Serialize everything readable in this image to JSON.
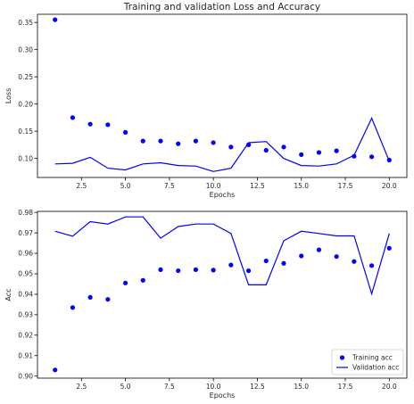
{
  "figure": {
    "title": "Training and validation Loss and Accuracy"
  },
  "chart_data": [
    {
      "type": "line",
      "xlabel": "Epochs",
      "ylabel": "Loss",
      "xlim": [
        0,
        21
      ],
      "ylim": [
        0.065,
        0.365
      ],
      "xticks": [
        2.5,
        5.0,
        7.5,
        10.0,
        12.5,
        15.0,
        17.5,
        20.0
      ],
      "xtick_labels": [
        "2.5",
        "5.0",
        "7.5",
        "10.0",
        "12.5",
        "15.0",
        "17.5",
        "20.0"
      ],
      "yticks": [
        0.1,
        0.15,
        0.2,
        0.25,
        0.3,
        0.35
      ],
      "ytick_labels": [
        "0.10",
        "0.15",
        "0.20",
        "0.25",
        "0.30",
        "0.35"
      ],
      "grid": false,
      "x": [
        1,
        2,
        3,
        4,
        5,
        6,
        7,
        8,
        9,
        10,
        11,
        12,
        13,
        14,
        15,
        16,
        17,
        18,
        19,
        20
      ],
      "series": [
        {
          "style": "scatter",
          "color": "#0000ff",
          "values": [
            0.355,
            0.175,
            0.163,
            0.162,
            0.148,
            0.132,
            0.132,
            0.127,
            0.132,
            0.129,
            0.121,
            0.125,
            0.115,
            0.121,
            0.107,
            0.111,
            0.114,
            0.104,
            0.103,
            0.097
          ]
        },
        {
          "style": "line",
          "color": "#0000ff",
          "values": [
            0.09,
            0.091,
            0.102,
            0.082,
            0.079,
            0.09,
            0.092,
            0.087,
            0.086,
            0.076,
            0.082,
            0.129,
            0.131,
            0.1,
            0.087,
            0.086,
            0.09,
            0.106,
            0.174,
            0.095
          ]
        }
      ]
    },
    {
      "type": "line",
      "xlabel": "Epochs",
      "ylabel": "Acc",
      "xlim": [
        0,
        21
      ],
      "ylim": [
        0.899,
        0.9805
      ],
      "xticks": [
        2.5,
        5.0,
        7.5,
        10.0,
        12.5,
        15.0,
        17.5,
        20.0
      ],
      "xtick_labels": [
        "2.5",
        "5.0",
        "7.5",
        "10.0",
        "12.5",
        "15.0",
        "17.5",
        "20.0"
      ],
      "yticks": [
        0.9,
        0.91,
        0.92,
        0.93,
        0.94,
        0.95,
        0.96,
        0.97,
        0.98
      ],
      "ytick_labels": [
        "0.90",
        "0.91",
        "0.92",
        "0.93",
        "0.94",
        "0.95",
        "0.96",
        "0.97",
        "0.98"
      ],
      "grid": false,
      "legend": "lower-right",
      "x": [
        1,
        2,
        3,
        4,
        5,
        6,
        7,
        8,
        9,
        10,
        11,
        12,
        13,
        14,
        15,
        16,
        17,
        18,
        19,
        20
      ],
      "series": [
        {
          "name": "Training acc",
          "style": "scatter",
          "color": "#0000ff",
          "values": [
            0.903,
            0.9335,
            0.9385,
            0.9375,
            0.9455,
            0.9468,
            0.952,
            0.9515,
            0.952,
            0.9518,
            0.9543,
            0.9515,
            0.9563,
            0.9551,
            0.9587,
            0.9617,
            0.9584,
            0.956,
            0.954,
            0.9625
          ]
        },
        {
          "name": "Validation acc",
          "style": "line",
          "color": "#0000ff",
          "values": [
            0.9708,
            0.9684,
            0.9755,
            0.9743,
            0.9778,
            0.9778,
            0.9674,
            0.9731,
            0.9743,
            0.9743,
            0.9697,
            0.9446,
            0.9446,
            0.9661,
            0.9708,
            0.9697,
            0.9685,
            0.9685,
            0.9402,
            0.9697
          ]
        }
      ]
    }
  ]
}
